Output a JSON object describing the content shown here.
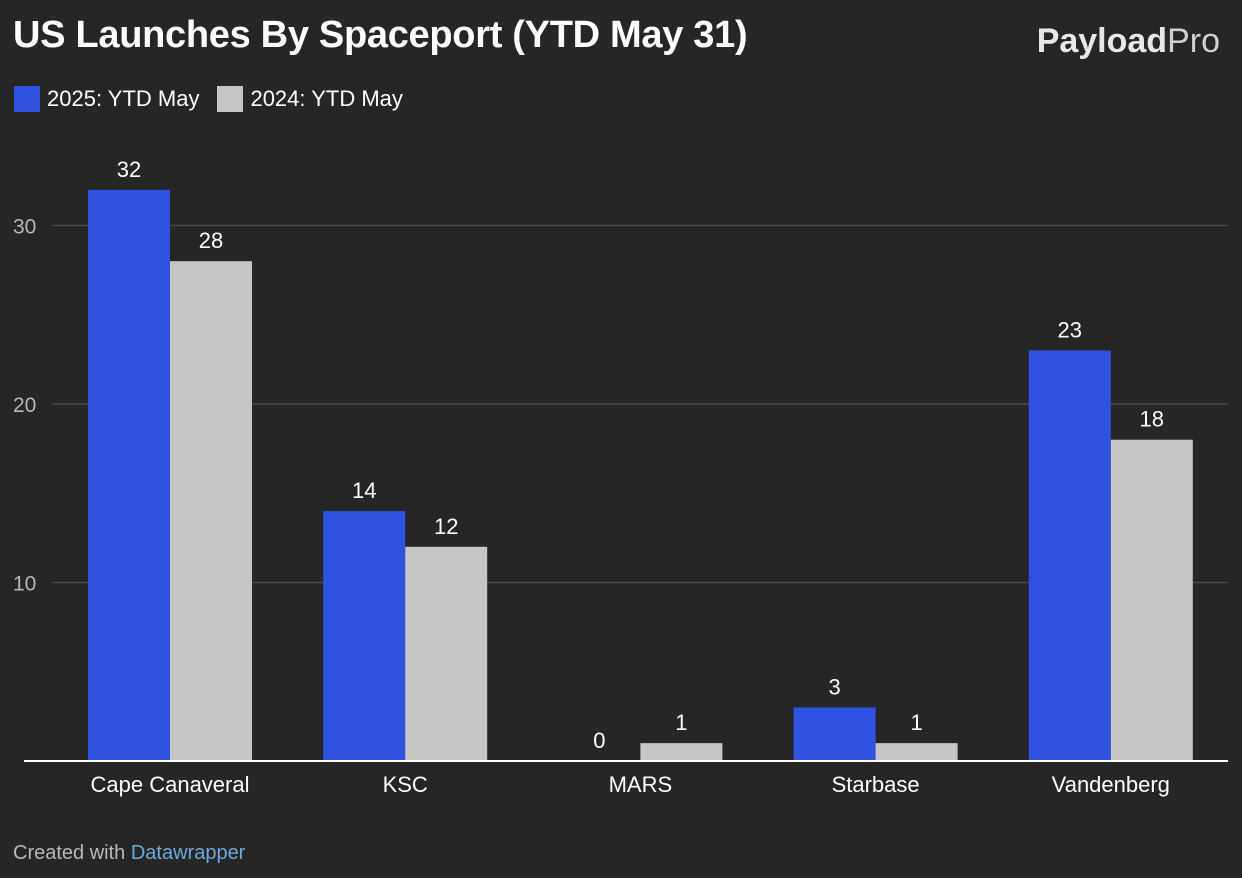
{
  "header": {
    "title": "US Launches By Spaceport (YTD May 31)",
    "brand_part1": "Payload",
    "brand_part2": "Pro"
  },
  "footer": {
    "created_with": "Created with",
    "tool": "Datawrapper"
  },
  "colors": {
    "background": "#262626",
    "series_2025": "#2f52e0",
    "series_2024": "#c6c6c6",
    "grid": "#4a4a4a",
    "text": "#ffffff",
    "axis_text": "#b8b8b8"
  },
  "chart_data": {
    "type": "bar",
    "title": "US Launches By Spaceport (YTD May 31)",
    "categories": [
      "Cape Canaveral",
      "KSC",
      "MARS",
      "Starbase",
      "Vandenberg"
    ],
    "series": [
      {
        "name": "2025: YTD May",
        "values": [
          32,
          14,
          0,
          3,
          23
        ],
        "color": "#2f52e0"
      },
      {
        "name": "2024: YTD May",
        "values": [
          28,
          12,
          1,
          1,
          18
        ],
        "color": "#c6c6c6"
      }
    ],
    "yticks": [
      "10",
      "20",
      "30"
    ],
    "ylim": [
      0,
      30
    ],
    "grid": true,
    "legend": "top-left",
    "xlabel": "",
    "ylabel": ""
  }
}
